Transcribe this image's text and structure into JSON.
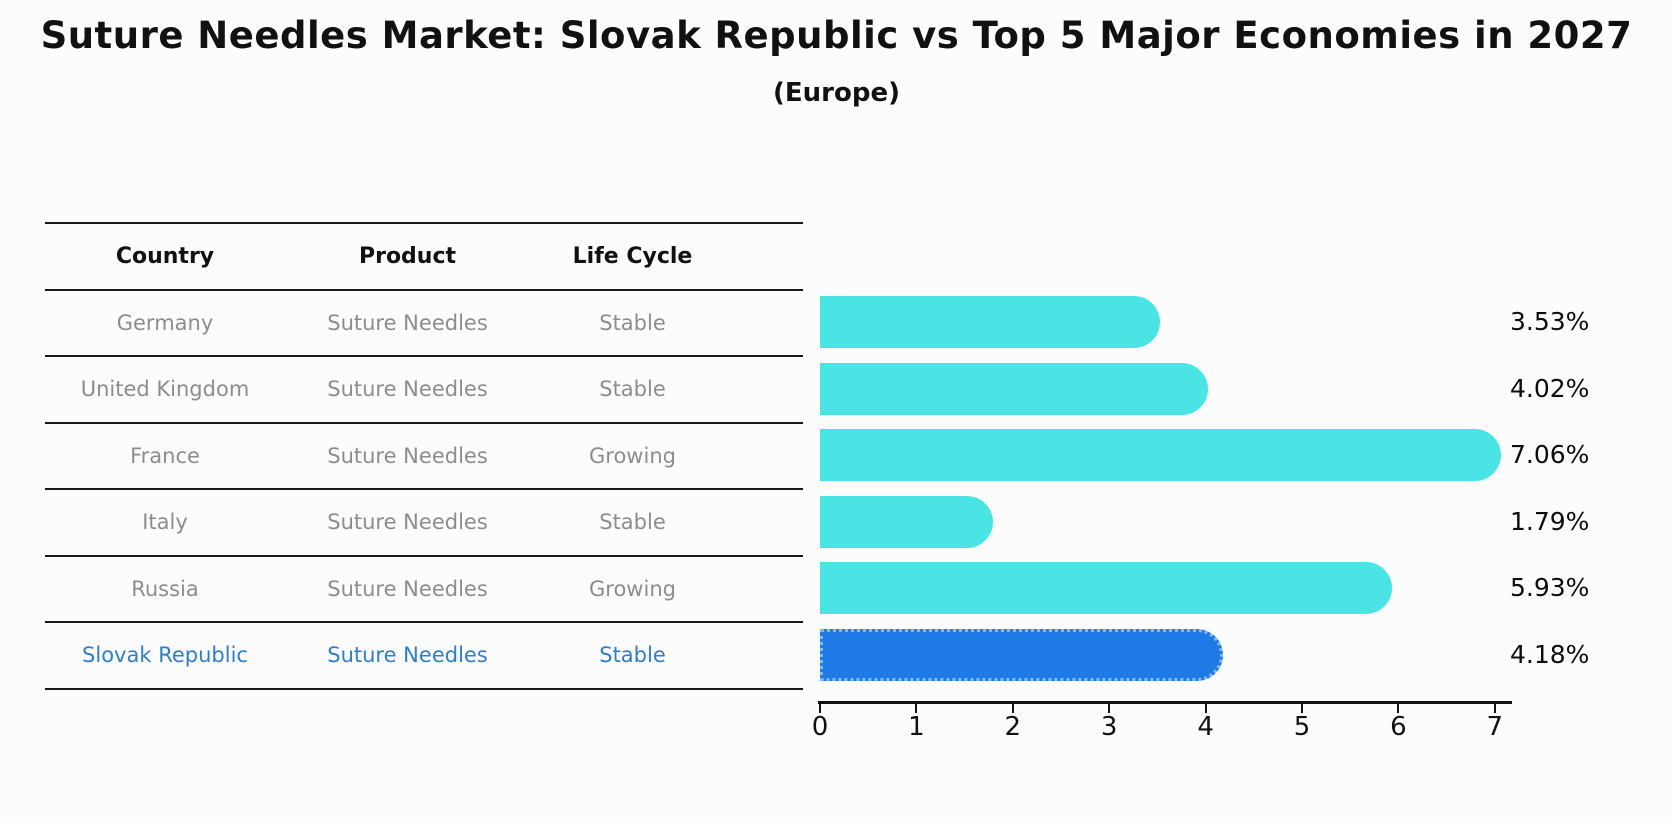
{
  "title": "Suture Needles Market: Slovak Republic vs Top 5 Major Economies in 2027",
  "subtitle": "(Europe)",
  "table": {
    "headers": {
      "country": "Country",
      "product": "Product",
      "life_cycle": "Life Cycle"
    },
    "rows": [
      {
        "country": "Germany",
        "product": "Suture Needles",
        "life_cycle": "Stable",
        "highlighted": false
      },
      {
        "country": "United Kingdom",
        "product": "Suture Needles",
        "life_cycle": "Stable",
        "highlighted": false
      },
      {
        "country": "France",
        "product": "Suture Needles",
        "life_cycle": "Growing",
        "highlighted": false
      },
      {
        "country": "Italy",
        "product": "Suture Needles",
        "life_cycle": "Stable",
        "highlighted": false
      },
      {
        "country": "Russia",
        "product": "Suture Needles",
        "life_cycle": "Growing",
        "highlighted": false
      },
      {
        "country": "Slovak Republic",
        "product": "Suture Needles",
        "life_cycle": "Stable",
        "highlighted": true
      }
    ]
  },
  "chart_data": {
    "type": "bar",
    "orientation": "horizontal",
    "title": "Suture Needles Market: Slovak Republic vs Top 5 Major Economies in 2027",
    "subtitle": "(Europe)",
    "categories": [
      "Germany",
      "United Kingdom",
      "France",
      "Italy",
      "Russia",
      "Slovak Republic"
    ],
    "values": [
      3.53,
      4.02,
      7.06,
      1.79,
      5.93,
      4.18
    ],
    "value_labels": [
      "3.53%",
      "4.02%",
      "7.06%",
      "1.79%",
      "5.93%",
      "4.18%"
    ],
    "xlim": [
      0,
      7.5
    ],
    "xticks": [
      0,
      1,
      2,
      3,
      4,
      5,
      6,
      7
    ],
    "grid": false,
    "legend": "none",
    "highlight_index": 5
  },
  "colors": {
    "bar": "#4ae4e4",
    "highlight_bar": "#207ae5",
    "highlight_border": "#84b9f2",
    "highlight_text": "#2f7ec7",
    "table_text": "#8d8d8d",
    "axis": "#111111"
  }
}
